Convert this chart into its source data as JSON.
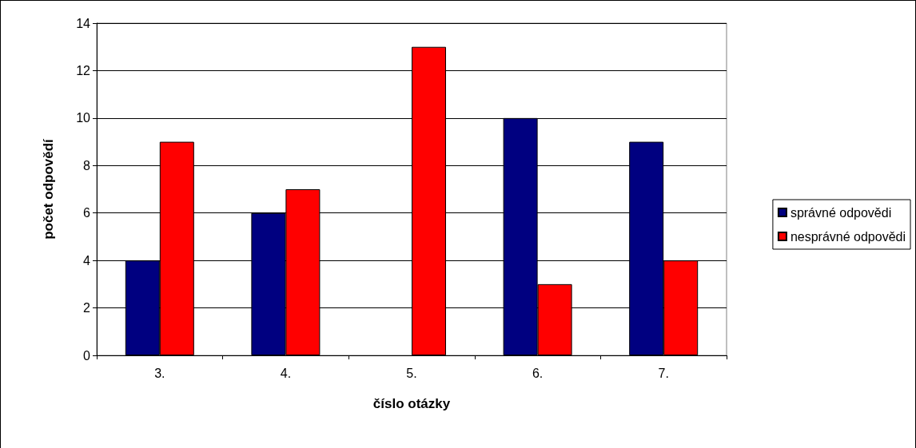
{
  "chart_data": {
    "type": "bar",
    "xlabel": "číslo otázky",
    "ylabel": "počet odpovědí",
    "categories": [
      "3.",
      "4.",
      "5.",
      "6.",
      "7."
    ],
    "series": [
      {
        "name": "správné odpovědi",
        "color": "#000080",
        "values": [
          4,
          6,
          0,
          10,
          9
        ]
      },
      {
        "name": "nesprávné odpovědi",
        "color": "#ff0000",
        "values": [
          9,
          7,
          13,
          3,
          4
        ]
      }
    ],
    "ylim": [
      0,
      14
    ],
    "yticks": [
      0,
      2,
      4,
      6,
      8,
      10,
      12,
      14
    ],
    "grid": "y",
    "legend": "right"
  }
}
